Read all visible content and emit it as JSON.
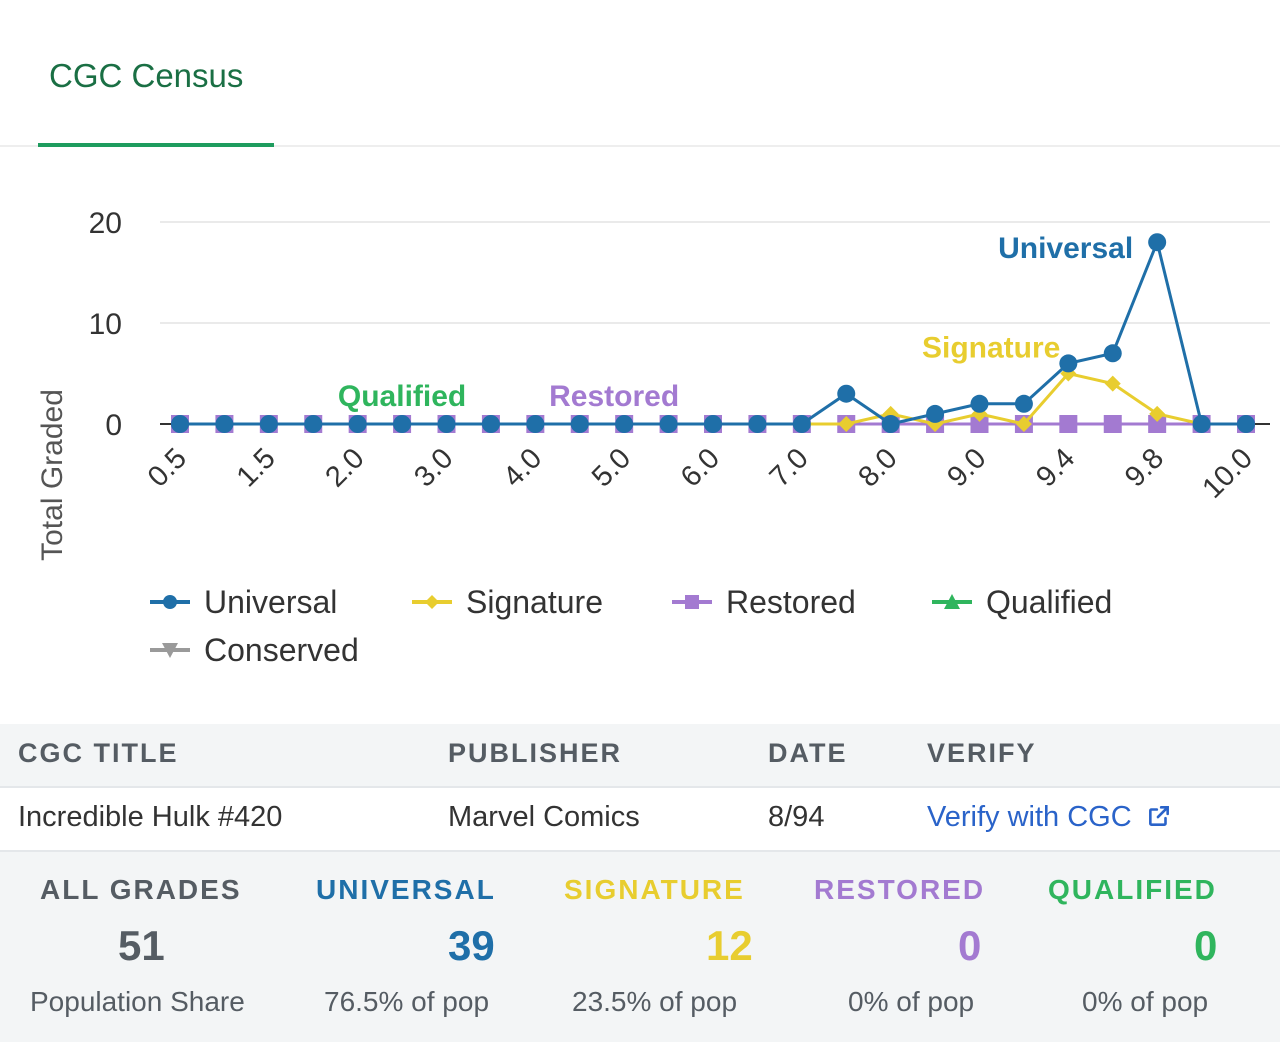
{
  "tab": {
    "label": "CGC Census"
  },
  "chart_data": {
    "type": "line",
    "ylabel": "Total Graded",
    "ylim": [
      0,
      20
    ],
    "yticks": [
      "0",
      "10",
      "20"
    ],
    "x": [
      "0.5",
      "1.0",
      "1.5",
      "1.8",
      "2.0",
      "2.5",
      "3.0",
      "3.5",
      "4.0",
      "4.5",
      "5.0",
      "5.5",
      "6.0",
      "6.5",
      "7.0",
      "7.5",
      "8.0",
      "8.5",
      "9.0",
      "9.2",
      "9.4",
      "9.6",
      "9.8",
      "9.9",
      "10.0"
    ],
    "xtick_labels": [
      "0.5",
      "1.5",
      "2.0",
      "3.0",
      "4.0",
      "5.0",
      "6.0",
      "7.0",
      "8.0",
      "9.0",
      "9.4",
      "9.8",
      "10.0"
    ],
    "xtick_indices": [
      0,
      2,
      4,
      6,
      8,
      10,
      12,
      14,
      16,
      18,
      20,
      22,
      24
    ],
    "grid": "horizontal",
    "legend_position": "bottom",
    "series": [
      {
        "name": "Universal",
        "color": "#1f6fa8",
        "marker": "circle",
        "values": [
          0,
          0,
          0,
          0,
          0,
          0,
          0,
          0,
          0,
          0,
          0,
          0,
          0,
          0,
          0,
          3,
          0,
          1,
          2,
          2,
          6,
          7,
          18,
          0,
          0
        ]
      },
      {
        "name": "Signature",
        "color": "#e8cd2f",
        "marker": "diamond",
        "values": [
          0,
          0,
          0,
          0,
          0,
          0,
          0,
          0,
          0,
          0,
          0,
          0,
          0,
          0,
          0,
          0,
          1,
          0,
          1,
          0,
          5,
          4,
          1,
          0,
          0
        ]
      },
      {
        "name": "Restored",
        "color": "#a37ad1",
        "marker": "square",
        "values": [
          0,
          0,
          0,
          0,
          0,
          0,
          0,
          0,
          0,
          0,
          0,
          0,
          0,
          0,
          0,
          0,
          0,
          0,
          0,
          0,
          0,
          0,
          0,
          0,
          0
        ]
      },
      {
        "name": "Qualified",
        "color": "#2fb55d",
        "marker": "triangle-up",
        "values": [
          0,
          0,
          0,
          0,
          0,
          0,
          0,
          0,
          0,
          0,
          0,
          0,
          0,
          0,
          0,
          0,
          0,
          0,
          0,
          0,
          0,
          0,
          0,
          0,
          0
        ]
      },
      {
        "name": "Conserved",
        "color": "#9a9a9a",
        "marker": "triangle-down",
        "values": [
          0,
          0,
          0,
          0,
          0,
          0,
          0,
          0,
          0,
          0,
          0,
          0,
          0,
          0,
          0,
          0,
          0,
          0,
          0,
          0,
          0,
          0,
          0,
          0,
          0
        ]
      }
    ],
    "annotations": [
      {
        "text": "Universal",
        "series": "Universal",
        "at_index": 22
      },
      {
        "text": "Signature",
        "series": "Signature",
        "at_index": 20
      },
      {
        "text": "Qualified",
        "series": "Qualified",
        "at_index": 5
      },
      {
        "text": "Restored",
        "series": "Restored",
        "at_index": 10
      }
    ]
  },
  "table": {
    "headers": {
      "title": "CGC TITLE",
      "publisher": "PUBLISHER",
      "date": "DATE",
      "verify": "VERIFY"
    },
    "row": {
      "title": "Incredible Hulk #420",
      "publisher": "Marvel Comics",
      "date": "8/94",
      "verify": "Verify with CGC"
    }
  },
  "stats": [
    {
      "key": "all",
      "head": "ALL GRADES",
      "value": "51",
      "sub": "Population Share",
      "color": "#555c63"
    },
    {
      "key": "universal",
      "head": "UNIVERSAL",
      "value": "39",
      "sub": "76.5% of pop",
      "color": "#1f6fa8"
    },
    {
      "key": "signature",
      "head": "SIGNATURE",
      "value": "12",
      "sub": "23.5% of pop",
      "color": "#e8cd2f"
    },
    {
      "key": "restored",
      "head": "RESTORED",
      "value": "0",
      "sub": "0% of pop",
      "color": "#a37ad1"
    },
    {
      "key": "qualified",
      "head": "QUALIFIED",
      "value": "0",
      "sub": "0% of pop",
      "color": "#2fb55d"
    }
  ]
}
